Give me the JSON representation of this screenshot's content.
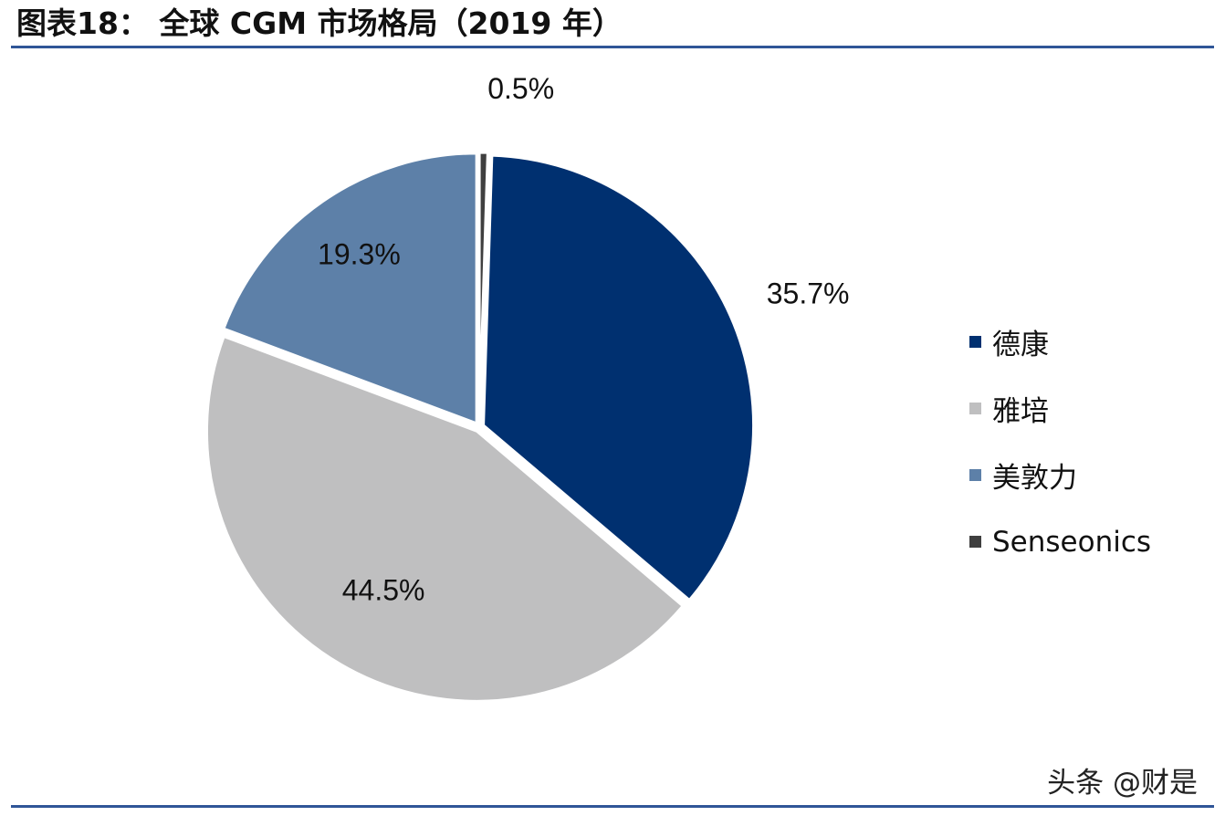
{
  "header": {
    "title": "图表18：  全球 CGM 市场格局（2019 年）"
  },
  "chart_data": {
    "type": "pie",
    "categories": [
      "德康",
      "雅培",
      "美敦力",
      "Senseonics"
    ],
    "values": [
      35.7,
      44.5,
      19.3,
      0.5
    ],
    "labels": [
      "35.7%",
      "44.5%",
      "19.3%",
      "0.5%"
    ],
    "colors": [
      "#003070",
      "#bfbfc0",
      "#5d80a8",
      "#3f3f3f"
    ],
    "legend_position": "right",
    "start": "12 o'clock, clockwise"
  },
  "watermark": {
    "text": "头条 @财是"
  }
}
